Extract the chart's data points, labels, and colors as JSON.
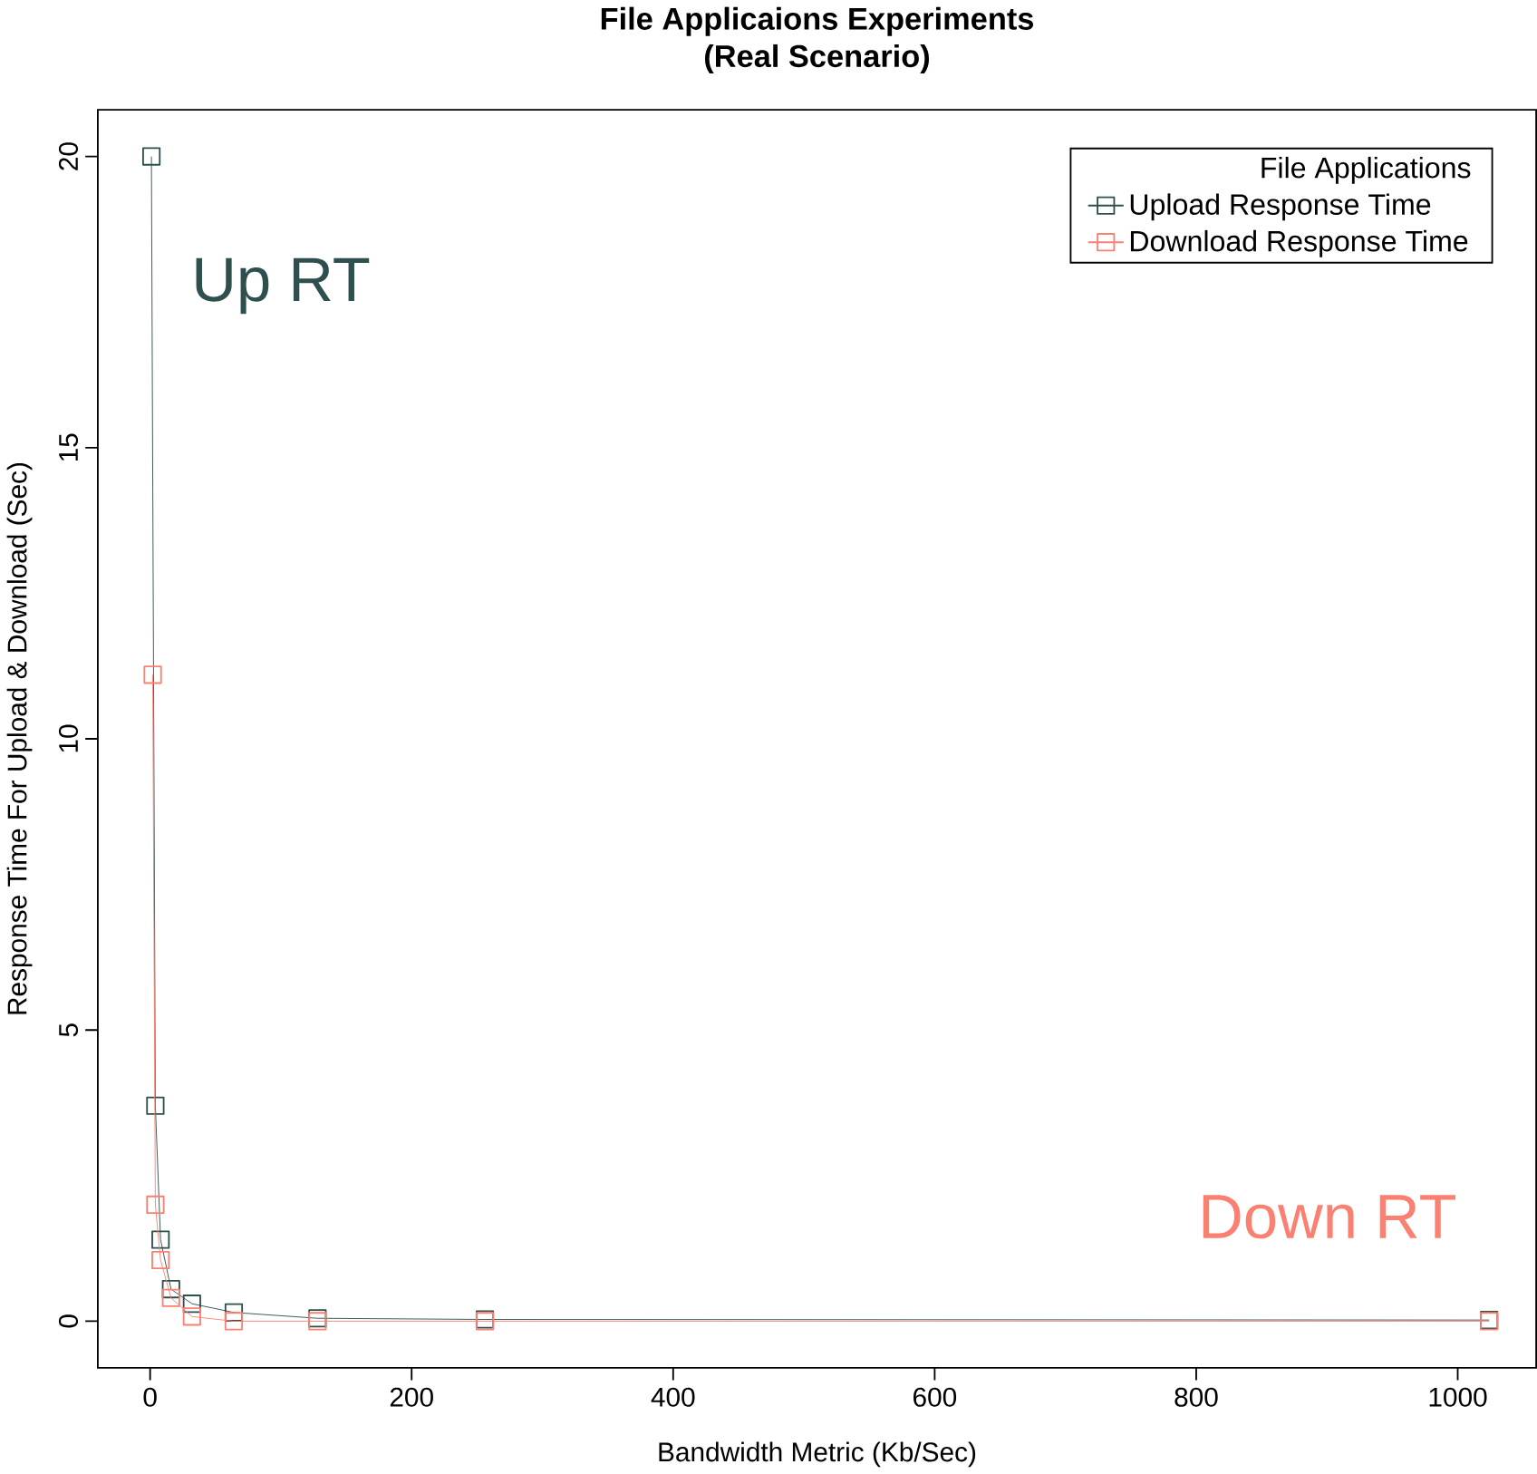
{
  "chart_data": {
    "type": "line",
    "title": "File Applicaions Experiments",
    "subtitle": "(Real Scenario)",
    "xlabel": "Bandwidth Metric (Kb/Sec)",
    "ylabel": "Response Time For Upload & Download (Sec)",
    "legend_title": "File Applications",
    "legend": "top right",
    "marker": "square",
    "grid": false,
    "xlim": [
      -40,
      1060
    ],
    "ylim": [
      -0.8,
      20.8
    ],
    "xticks": [
      0,
      200,
      400,
      600,
      800,
      1000
    ],
    "yticks": [
      0,
      5,
      10,
      15,
      20
    ],
    "annotations": [
      "Up RT",
      "Down RT"
    ],
    "series": [
      {
        "name": "Upload Response Time",
        "color": "#2f4f4f",
        "x": [
          1,
          4,
          8,
          16,
          32,
          64,
          128,
          256,
          1024
        ],
        "values": [
          20,
          3.7,
          1.4,
          0.55,
          0.3,
          0.15,
          0.05,
          0.03,
          0.02
        ]
      },
      {
        "name": "Download Response Time",
        "color": "#fa8072",
        "x": [
          2,
          4,
          8,
          16,
          32,
          64,
          128,
          256,
          1024
        ],
        "values": [
          11.1,
          2.0,
          1.05,
          0.4,
          0.08,
          0,
          0,
          0,
          0
        ]
      }
    ]
  }
}
